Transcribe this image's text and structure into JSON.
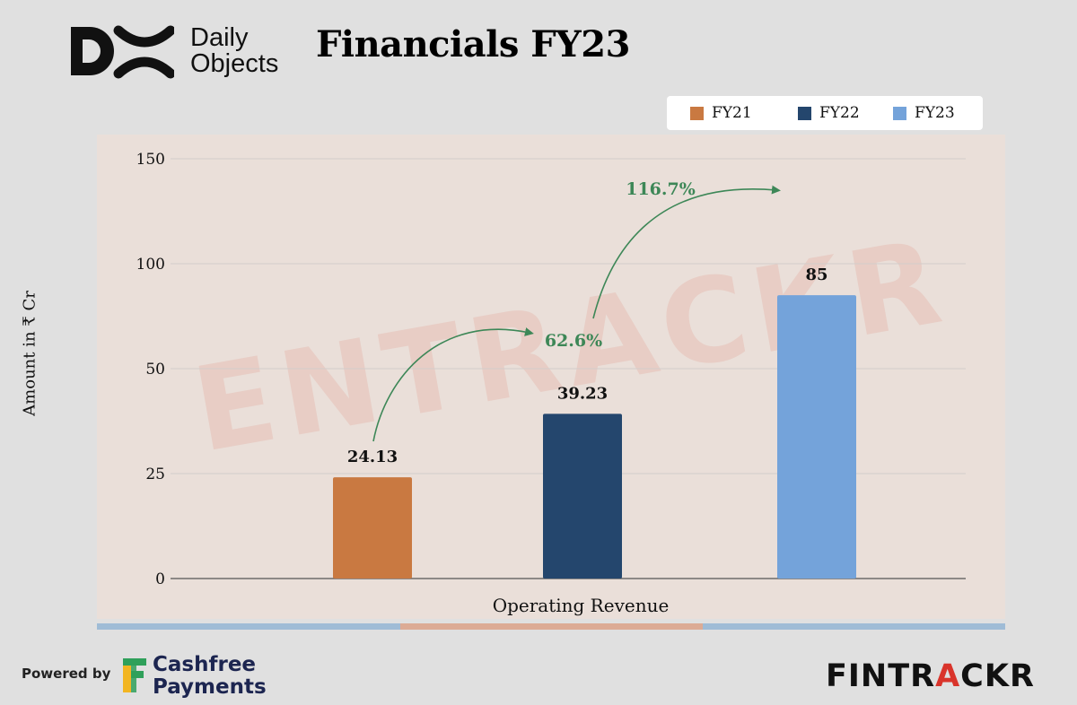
{
  "brand": {
    "logo_line1": "Daily",
    "logo_line2": "Objects"
  },
  "title": "Financials FY23",
  "footer": {
    "powered_by": "Powered by",
    "sponsor_line1": "Cashfree",
    "sponsor_line2": "Payments",
    "publisher_part1": "FINTR",
    "publisher_accent": "A",
    "publisher_part2": "CKR"
  },
  "watermark": "ENTRACKR",
  "colors": {
    "FY21": "#c97941",
    "FY22": "#24466d",
    "FY23": "#74a3da",
    "growth": "#3d8757"
  },
  "chart_data": {
    "type": "bar",
    "categories": [
      "Operating Revenue"
    ],
    "series": [
      {
        "name": "FY21",
        "values": [
          24.13
        ],
        "label": "24.13"
      },
      {
        "name": "FY22",
        "values": [
          39.23
        ],
        "label": "39.23"
      },
      {
        "name": "FY23",
        "values": [
          85
        ],
        "label": "85"
      }
    ],
    "tick_labels": [
      "0",
      "25",
      "50",
      "100",
      "150"
    ],
    "xlabel": "Operating Revenue",
    "ylabel": "Amount in ₹ Cr",
    "annotations": [
      "62.6%",
      "116.7%"
    ],
    "grid": true,
    "legend": "top-right"
  }
}
